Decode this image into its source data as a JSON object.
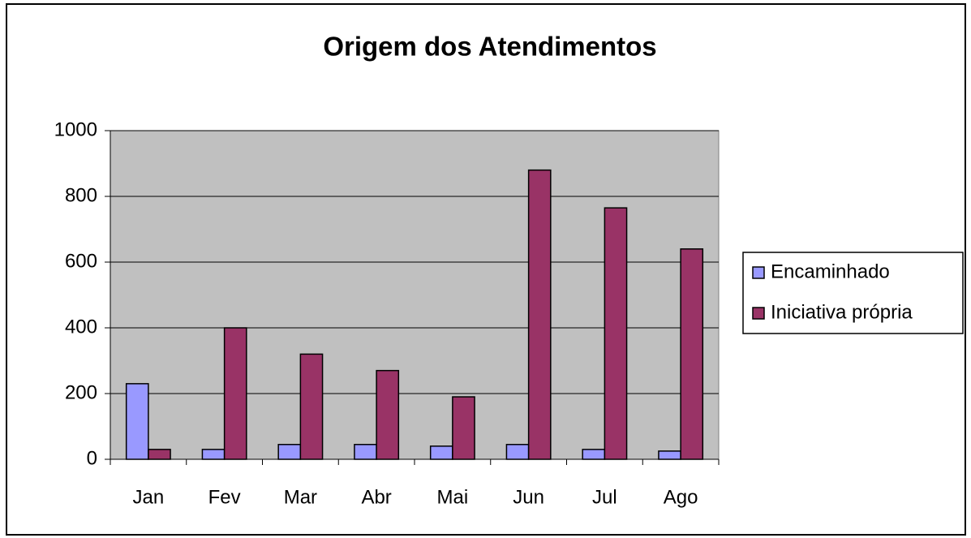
{
  "chart_data": {
    "type": "bar",
    "title": "Origem dos Atendimentos",
    "categories": [
      "Jan",
      "Fev",
      "Mar",
      "Abr",
      "Mai",
      "Jun",
      "Jul",
      "Ago"
    ],
    "series": [
      {
        "name": "Encaminhado",
        "color": "#9999ff",
        "values": [
          230,
          30,
          45,
          45,
          40,
          45,
          30,
          25
        ]
      },
      {
        "name": "Iniciativa própria",
        "color": "#993366",
        "values": [
          30,
          400,
          320,
          270,
          190,
          880,
          765,
          640
        ]
      }
    ],
    "ylim": [
      0,
      1000
    ],
    "yticks": [
      0,
      200,
      400,
      600,
      800,
      1000
    ],
    "grid": true,
    "legend": "right"
  }
}
